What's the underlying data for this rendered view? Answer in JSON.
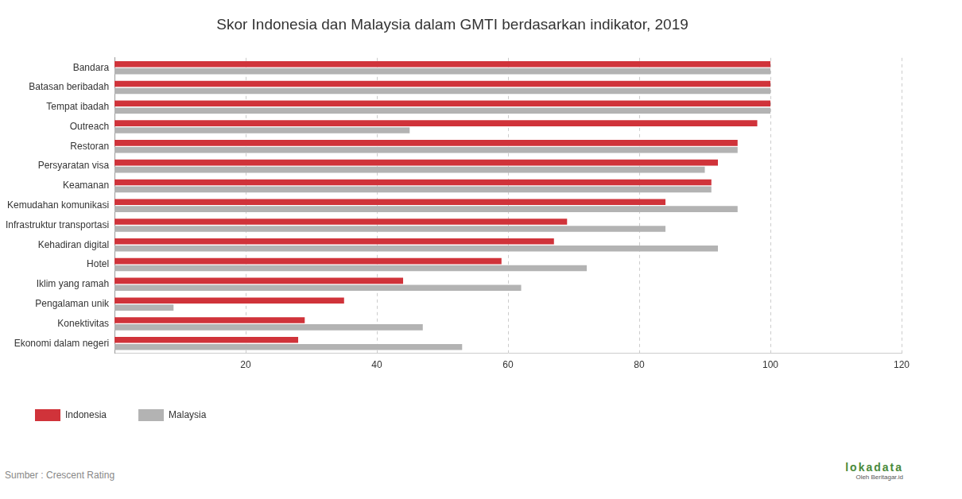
{
  "chart_data": {
    "type": "bar",
    "orientation": "horizontal",
    "title": "Skor Indonesia dan Malaysia dalam GMTI berdasarkan indikator, 2019",
    "categories": [
      "Bandara",
      "Batasan beribadah",
      "Tempat ibadah",
      "Outreach",
      "Restoran",
      "Persyaratan visa",
      "Keamanan",
      "Kemudahan komunikasi",
      "Infrastruktur transportasi",
      "Kehadiran digital",
      "Hotel",
      "Iklim yang ramah",
      "Pengalaman unik",
      "Konektivitas",
      "Ekonomi dalam negeri"
    ],
    "series": [
      {
        "name": "Indonesia",
        "color": "#d0333a",
        "values": [
          100,
          100,
          100,
          98,
          95,
          92,
          91,
          84,
          69,
          67,
          59,
          44,
          35,
          29,
          28
        ]
      },
      {
        "name": "Malaysia",
        "color": "#b3b3b3",
        "values": [
          100,
          100,
          100,
          45,
          95,
          90,
          91,
          95,
          84,
          92,
          72,
          62,
          9,
          47,
          53
        ]
      }
    ],
    "xlim": [
      0,
      120
    ],
    "xticks": [
      20,
      40,
      60,
      80,
      100,
      120
    ],
    "grid": true,
    "legend": "bottom-left",
    "source": "Sumber : Crescent Rating",
    "credit": "lokadata",
    "credit_sub": "Oleh Beritagar.id"
  }
}
